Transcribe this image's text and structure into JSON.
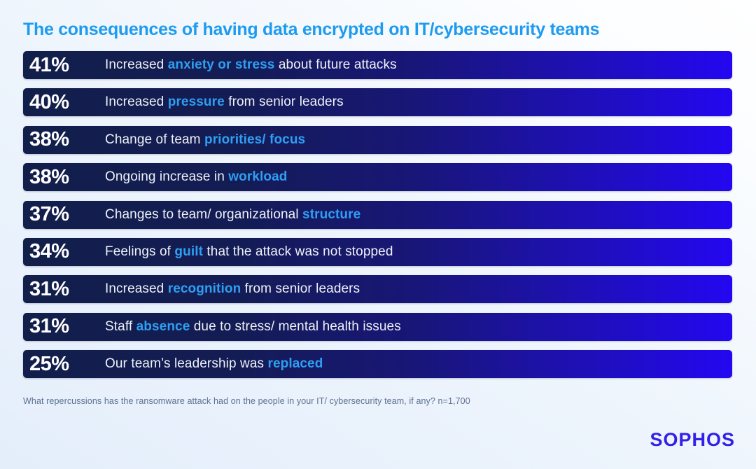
{
  "title": "The consequences of having data encrypted on IT/cybersecurity teams",
  "footnote": "What repercussions has the ransomware attack had on the people in your IT/ cybersecurity team, if any? n=1,700",
  "logo_text": "SOPHOS",
  "colors": {
    "title_blue": "#1d9bf0",
    "highlight_blue": "#2e9ff2",
    "bar_gradient_start": "#121f4a",
    "bar_gradient_end": "#2407f1",
    "footnote_gray": "#5d7190",
    "logo_blue": "#3220ea",
    "background_from": "#e4eefb",
    "background_to": "#ffffff"
  },
  "chart_data": {
    "type": "bar",
    "orientation": "horizontal",
    "title": "The consequences of having data encrypted on IT/cybersecurity teams",
    "categories": [
      "Increased anxiety or stress about future attacks",
      "Increased pressure from senior leaders",
      "Change of team priorities/ focus",
      "Ongoing increase in workload",
      "Changes to team/ organizational structure",
      "Feelings of guilt that the attack was not stopped",
      "Increased recognition from senior leaders",
      "Staff absence due to stress/ mental health issues",
      "Our team’s leadership was replaced"
    ],
    "values": [
      41,
      40,
      38,
      38,
      37,
      34,
      31,
      31,
      25
    ],
    "unit": "%",
    "bar_style": "equal-width rows, value shown as leading label",
    "note": "What repercussions has the ransomware attack had on the people in your IT/ cybersecurity team, if any? n=1,700"
  },
  "bars": [
    {
      "pct": "41%",
      "value": 41,
      "segments": [
        {
          "text": "Increased ",
          "hl": false
        },
        {
          "text": "anxiety or stress",
          "hl": true
        },
        {
          "text": " about future attacks",
          "hl": false
        }
      ]
    },
    {
      "pct": "40%",
      "value": 40,
      "segments": [
        {
          "text": "Increased ",
          "hl": false
        },
        {
          "text": "pressure",
          "hl": true
        },
        {
          "text": " from senior leaders",
          "hl": false
        }
      ]
    },
    {
      "pct": "38%",
      "value": 38,
      "segments": [
        {
          "text": "Change of team ",
          "hl": false
        },
        {
          "text": "priorities/ focus",
          "hl": true
        }
      ]
    },
    {
      "pct": "38%",
      "value": 38,
      "segments": [
        {
          "text": "Ongoing increase in ",
          "hl": false
        },
        {
          "text": "workload",
          "hl": true
        }
      ]
    },
    {
      "pct": "37%",
      "value": 37,
      "segments": [
        {
          "text": "Changes to team/ organizational ",
          "hl": false
        },
        {
          "text": "structure",
          "hl": true
        }
      ]
    },
    {
      "pct": "34%",
      "value": 34,
      "segments": [
        {
          "text": "Feelings of ",
          "hl": false
        },
        {
          "text": "guilt",
          "hl": true
        },
        {
          "text": " that the attack was not stopped",
          "hl": false
        }
      ]
    },
    {
      "pct": "31%",
      "value": 31,
      "segments": [
        {
          "text": "Increased ",
          "hl": false
        },
        {
          "text": "recognition",
          "hl": true
        },
        {
          "text": " from senior leaders",
          "hl": false
        }
      ]
    },
    {
      "pct": "31%",
      "value": 31,
      "segments": [
        {
          "text": "Staff ",
          "hl": false
        },
        {
          "text": "absence",
          "hl": true
        },
        {
          "text": " due to stress/ mental health issues",
          "hl": false
        }
      ]
    },
    {
      "pct": "25%",
      "value": 25,
      "segments": [
        {
          "text": "Our team’s leadership was ",
          "hl": false
        },
        {
          "text": "replaced",
          "hl": true
        }
      ]
    }
  ]
}
